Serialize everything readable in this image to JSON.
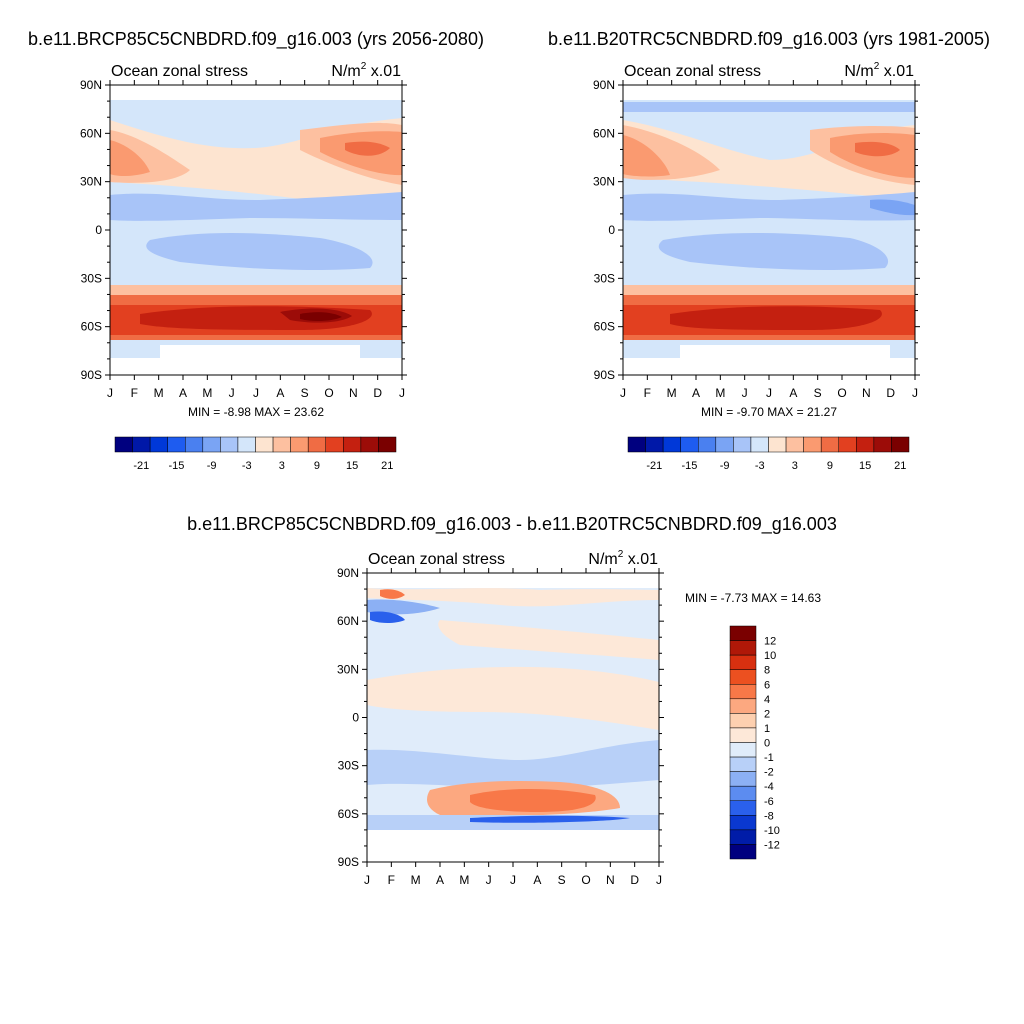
{
  "chart_data": [
    {
      "type": "heatmap",
      "title": "b.e11.BRCP85C5CNBDRD.f09_g16.003 (yrs 2056-2080)",
      "left_label": "Ocean zonal stress",
      "units": "N/m",
      "units_sup": "2",
      "units_scale": " x.01",
      "x_ticks": [
        "J",
        "F",
        "M",
        "A",
        "M",
        "J",
        "J",
        "A",
        "S",
        "O",
        "N",
        "D",
        "J"
      ],
      "y_ticks": [
        "90N",
        "60N",
        "30N",
        "0",
        "30S",
        "60S",
        "90S"
      ],
      "ylim": [
        -90,
        90
      ],
      "stats_text": "MIN =  -8.98 MAX =  23.62",
      "min": -8.98,
      "max": 23.62,
      "colorbar_labels": [
        "-21",
        "-15",
        "-9",
        "-3",
        "3",
        "9",
        "15",
        "21"
      ],
      "colorbar_colors": [
        "#00007f",
        "#0018a8",
        "#0038d8",
        "#1e5cf0",
        "#4a80f0",
        "#7aa4f4",
        "#a8c4f8",
        "#d4e6fa",
        "#fde4d0",
        "#fdc0a0",
        "#fa9a70",
        "#f06c44",
        "#e24020",
        "#c42010",
        "#9c0c08",
        "#7a0000"
      ]
    },
    {
      "type": "heatmap",
      "title": "b.e11.B20TRC5CNBDRD.f09_g16.003 (yrs 1981-2005)",
      "left_label": "Ocean zonal stress",
      "units": "N/m",
      "units_sup": "2",
      "units_scale": " x.01",
      "x_ticks": [
        "J",
        "F",
        "M",
        "A",
        "M",
        "J",
        "J",
        "A",
        "S",
        "O",
        "N",
        "D",
        "J"
      ],
      "y_ticks": [
        "90N",
        "60N",
        "30N",
        "0",
        "30S",
        "60S",
        "90S"
      ],
      "ylim": [
        -90,
        90
      ],
      "stats_text": "MIN =  -9.70 MAX =  21.27",
      "min": -9.7,
      "max": 21.27,
      "colorbar_labels": [
        "-21",
        "-15",
        "-9",
        "-3",
        "3",
        "9",
        "15",
        "21"
      ],
      "colorbar_colors": [
        "#00007f",
        "#0018a8",
        "#0038d8",
        "#1e5cf0",
        "#4a80f0",
        "#7aa4f4",
        "#a8c4f8",
        "#d4e6fa",
        "#fde4d0",
        "#fdc0a0",
        "#fa9a70",
        "#f06c44",
        "#e24020",
        "#c42010",
        "#9c0c08",
        "#7a0000"
      ]
    },
    {
      "type": "heatmap",
      "title": "b.e11.BRCP85C5CNBDRD.f09_g16.003 - b.e11.B20TRC5CNBDRD.f09_g16.003",
      "left_label": "Ocean zonal stress",
      "units": "N/m",
      "units_sup": "2",
      "units_scale": " x.01",
      "x_ticks": [
        "J",
        "F",
        "M",
        "A",
        "M",
        "J",
        "J",
        "A",
        "S",
        "O",
        "N",
        "D",
        "J"
      ],
      "y_ticks": [
        "90N",
        "60N",
        "30N",
        "0",
        "30S",
        "60S",
        "90S"
      ],
      "ylim": [
        -90,
        90
      ],
      "stats_text": "MIN =  -7.73 MAX =  14.63",
      "min": -7.73,
      "max": 14.63,
      "colorbar_labels": [
        "12",
        "10",
        "8",
        "6",
        "4",
        "2",
        "1",
        "0",
        "-1",
        "-2",
        "-4",
        "-6",
        "-8",
        "-10",
        "-12"
      ],
      "colorbar_colors": [
        "#7a0000",
        "#b01808",
        "#d83010",
        "#ec5020",
        "#f87848",
        "#fca880",
        "#fdd0b0",
        "#fde8d8",
        "#e0ecfa",
        "#b8d0f8",
        "#8cb0f4",
        "#5c8cf0",
        "#2a60ec",
        "#0a38d0",
        "#001ca8",
        "#00007f"
      ]
    }
  ]
}
